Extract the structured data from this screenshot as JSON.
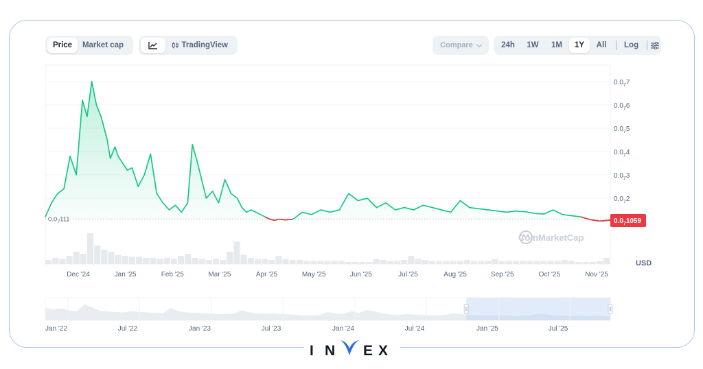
{
  "toolbar": {
    "price_tab": "Price",
    "marketcap_tab": "Market cap",
    "tradingview_label": "TradingView",
    "compare_label": "Compare",
    "ranges": [
      "24h",
      "1W",
      "1M",
      "1Y",
      "All"
    ],
    "active_range": "1Y",
    "log_label": "Log"
  },
  "watermark": "CoinMarketCap",
  "currency_label": "USD",
  "brand": {
    "letters": [
      "I",
      "N",
      "V",
      "E",
      "X"
    ]
  },
  "chart_data": {
    "type": "area",
    "y_scale": {
      "min": 0.05,
      "max": 0.77,
      "ticks": [
        {
          "value": 0.2,
          "label_main": "0.0",
          "label_sub": "7",
          "label_tail": "2"
        },
        {
          "value": 0.3,
          "label_main": "0.0",
          "label_sub": "7",
          "label_tail": "3"
        },
        {
          "value": 0.4,
          "label_main": "0.0",
          "label_sub": "7",
          "label_tail": "4"
        },
        {
          "value": 0.5,
          "label_main": "0.0",
          "label_sub": "7",
          "label_tail": "5"
        },
        {
          "value": 0.6,
          "label_main": "0.0",
          "label_sub": "7",
          "label_tail": "6"
        },
        {
          "value": 0.7,
          "label_main": "0.0",
          "label_sub": "7",
          "label_tail": "7"
        }
      ]
    },
    "baseline": {
      "value": 0.111,
      "label_main": "0.0",
      "label_sub": "7",
      "label_tail": "111"
    },
    "current": {
      "value": 0.1059,
      "label_main": "0.0",
      "label_sub": "7",
      "label_tail": "1059"
    },
    "x_labels": [
      "Dec '24",
      "Jan '25",
      "Feb '25",
      "Mar '25",
      "Apr '25",
      "May '25",
      "Jun '25",
      "Jul '25",
      "Aug '25",
      "Sep '25",
      "Oct '25",
      "Nov '25"
    ],
    "x_range": [
      0,
      365
    ],
    "series": [
      {
        "x": [
          0,
          4,
          8,
          12,
          16,
          20,
          24,
          27,
          30,
          33,
          36,
          40,
          42,
          45,
          47,
          50,
          53,
          56,
          60,
          64,
          68,
          72,
          76,
          80,
          84,
          88,
          92,
          95,
          98,
          101,
          104,
          108,
          112,
          116,
          120,
          124,
          127,
          130,
          133,
          136,
          139,
          142,
          145,
          148,
          151,
          155,
          160,
          166,
          172,
          178,
          184,
          190,
          196,
          202,
          208,
          214,
          220,
          226,
          232,
          238,
          244,
          250,
          256,
          262,
          268,
          274,
          280,
          286,
          292,
          298,
          304,
          310,
          316,
          322,
          328,
          334,
          340,
          346,
          352,
          358,
          365
        ],
        "values": [
          0.12,
          0.18,
          0.22,
          0.24,
          0.38,
          0.3,
          0.62,
          0.55,
          0.7,
          0.6,
          0.55,
          0.45,
          0.37,
          0.42,
          0.38,
          0.35,
          0.32,
          0.33,
          0.25,
          0.3,
          0.39,
          0.22,
          0.18,
          0.15,
          0.17,
          0.14,
          0.18,
          0.43,
          0.36,
          0.28,
          0.2,
          0.23,
          0.18,
          0.28,
          0.22,
          0.2,
          0.16,
          0.14,
          0.15,
          0.14,
          0.13,
          0.12,
          0.11,
          0.105,
          0.11,
          0.107,
          0.11,
          0.14,
          0.13,
          0.15,
          0.14,
          0.15,
          0.22,
          0.19,
          0.2,
          0.16,
          0.18,
          0.15,
          0.16,
          0.15,
          0.17,
          0.16,
          0.15,
          0.14,
          0.19,
          0.16,
          0.155,
          0.15,
          0.145,
          0.14,
          0.145,
          0.142,
          0.135,
          0.132,
          0.15,
          0.13,
          0.125,
          0.12,
          0.108,
          0.102,
          0.1059
        ]
      }
    ],
    "volume": [
      4,
      6,
      5,
      8,
      12,
      10,
      30,
      18,
      14,
      12,
      9,
      8,
      7,
      7,
      6,
      6,
      5,
      6,
      5,
      8,
      10,
      6,
      5,
      4,
      5,
      4,
      12,
      22,
      9,
      6,
      5,
      5,
      4,
      8,
      5,
      4,
      4,
      3,
      3,
      3,
      3,
      3,
      3,
      2,
      2,
      2,
      2,
      5,
      4,
      3,
      3,
      4,
      8,
      5,
      4,
      3,
      3,
      3,
      3,
      3,
      4,
      3,
      3,
      3,
      5,
      3,
      3,
      3,
      3,
      3,
      3,
      3,
      3,
      3,
      4,
      3,
      2,
      2,
      2,
      3,
      6
    ],
    "navigator": {
      "x_labels": [
        "Jan '22",
        "Jul '22",
        "Jan '23",
        "Jul '23",
        "Jan '24",
        "Jul '24",
        "Jan '25",
        "Jul '25"
      ],
      "values": [
        3,
        2.6,
        2.9,
        2.4,
        2.2,
        3.8,
        3.1,
        2.3,
        2.1,
        2,
        1.9,
        2.2,
        2,
        1.9,
        1.8,
        1.7,
        3,
        2.2,
        1.9,
        1.8,
        1.7,
        1.6,
        1.5,
        1.5,
        1.6,
        2.4,
        1.9,
        1.7,
        1.6,
        1.6,
        1.5,
        1.4,
        1.3,
        1.2,
        1.2,
        1.3,
        2,
        1.6,
        1.5,
        2.2,
        1.8,
        2.5,
        2.2,
        1.6,
        1.4,
        1.3,
        1.5,
        1.4,
        1.3,
        1.2,
        1.2,
        1.3,
        1.7,
        1.5,
        1.3,
        1.2,
        1.1,
        1.1,
        1.2,
        1.1,
        1,
        1.1,
        1.3,
        1.6,
        1.4,
        1.2,
        1.1,
        1,
        1.1,
        1,
        1.1,
        1,
        0.9
      ],
      "selected_range": [
        0.745,
        1.0
      ]
    }
  }
}
